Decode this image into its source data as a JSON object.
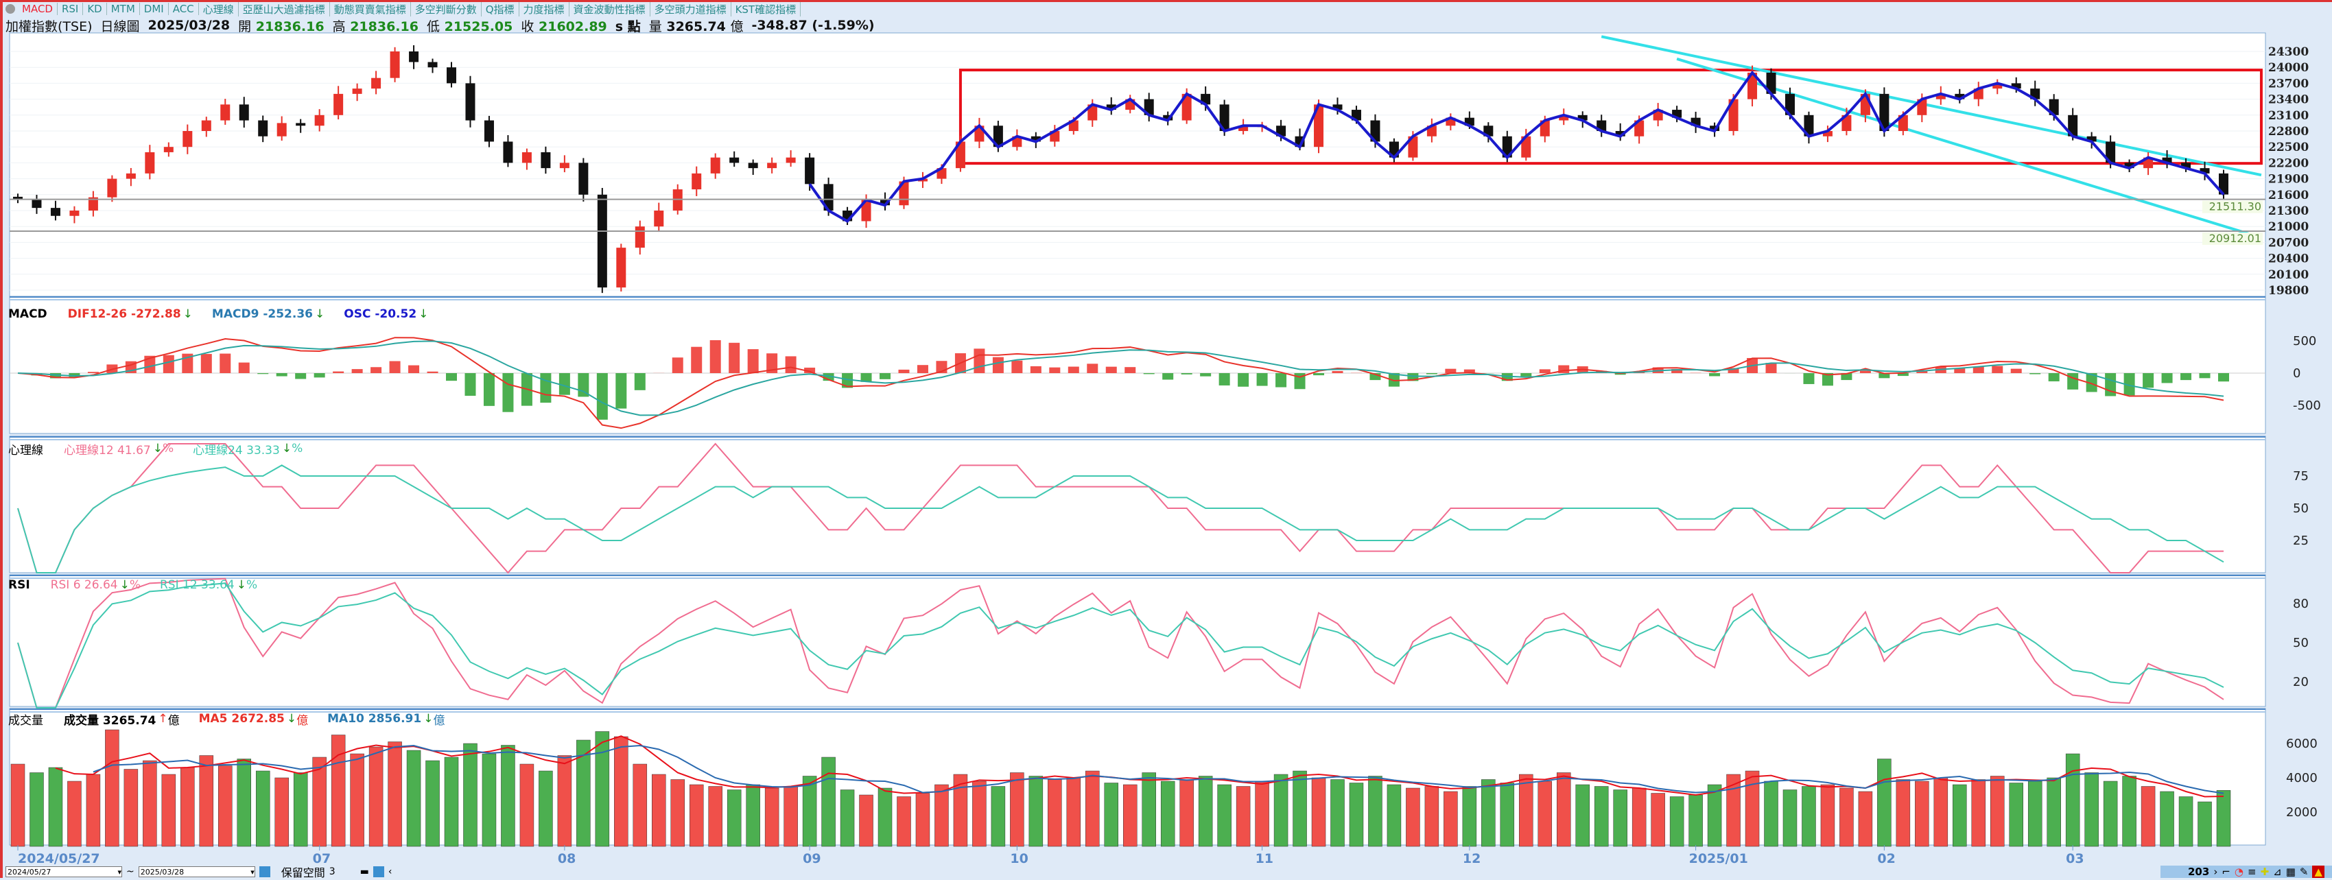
{
  "tabs": [
    "MACD",
    "RSI",
    "KD",
    "MTM",
    "DMI",
    "ACC",
    "心理線",
    "亞歷山大過濾指標",
    "動態買賣氣指標",
    "多空判斷分數",
    "Q指標",
    "力度指標",
    "資金波動性指標",
    "多空頭力道指標",
    "KST確認指標"
  ],
  "header": {
    "symbol": "加權指數(TSE)",
    "period": "日線圖",
    "date": "2025/03/28",
    "open_label": "開",
    "open": "21836.16",
    "high_label": "高",
    "high": "21836.16",
    "low_label": "低",
    "low": "21525.05",
    "close_label": "收",
    "close": "21602.89",
    "unit": "s 點",
    "vol_label": "量",
    "volume": "3265.74",
    "vol_unit": "億",
    "change": "-348.87 (-1.59%)"
  },
  "macd_legend": {
    "title": "MACD",
    "dif": "DIF12-26 -272.88",
    "macd": "MACD9 -252.36",
    "osc": "OSC -20.52",
    "arrow": "↓"
  },
  "psy_legend": {
    "title": "心理線",
    "p12": "心理線12 41.67",
    "p24": "心理線24 33.33",
    "arrow": "↓",
    "pct": "%"
  },
  "rsi_legend": {
    "title": "RSI",
    "r6": "RSI 6 26.64",
    "r12": "RSI 12 33.64",
    "arrow": "↓",
    "pct": "%"
  },
  "vol_legend": {
    "title": "成交量",
    "vol": "成交量 3265.74",
    "up": "↑",
    "ma5": "MA5 2672.85",
    "ma10": "MA10 2856.91",
    "arrow": "↓",
    "unit": "億"
  },
  "colors": {
    "up": "#e8322a",
    "down": "#111111",
    "vol_up": "#f0504a",
    "vol_down": "#4caf50",
    "dif": "#e8322a",
    "macd": "#2aa6a0",
    "zigzag": "#1a1acc",
    "box": "#e8101a",
    "channel": "#33e0e8"
  },
  "toolbar": {
    "from": "2024/05/27",
    "to": "2025/03/28",
    "tilde": "~",
    "keep_label": "保留空間",
    "keep_value": "3",
    "count": "203"
  },
  "chart_data": {
    "type": "candlestick",
    "closes": [
      21500,
      21350,
      21200,
      21300,
      21550,
      21900,
      22000,
      22400,
      22500,
      22800,
      23000,
      23300,
      23000,
      22700,
      22950,
      22900,
      23100,
      23500,
      23600,
      23800,
      24300,
      24100,
      24000,
      23700,
      23000,
      22600,
      22200,
      22400,
      22100,
      22200,
      21600,
      19850,
      20600,
      21000,
      21300,
      21700,
      22000,
      22300,
      22200,
      22100,
      22200,
      22300,
      21800,
      21300,
      21100,
      21500,
      21400,
      21850,
      21900,
      22100,
      22600,
      22900,
      22500,
      22700,
      22600,
      22800,
      23000,
      23300,
      23200,
      23400,
      23100,
      23000,
      23500,
      23300,
      22800,
      22900,
      22900,
      22700,
      22500,
      23300,
      23200,
      23000,
      22600,
      22300,
      22700,
      22900,
      23050,
      22900,
      22700,
      22300,
      22700,
      23000,
      23100,
      23000,
      22800,
      22700,
      23000,
      23200,
      23050,
      22900,
      22800,
      23400,
      23900,
      23500,
      23100,
      22700,
      22800,
      23100,
      23500,
      22800,
      23100,
      23400,
      23500,
      23400,
      23600,
      23700,
      23600,
      23400,
      23100,
      22700,
      22600,
      22200,
      22100,
      22300,
      22200,
      22100,
      22000,
      21603
    ],
    "volumes": [
      4800,
      4300,
      4600,
      3800,
      4200,
      6800,
      4500,
      5000,
      4200,
      4600,
      5300,
      4700,
      5100,
      4400,
      4000,
      4300,
      5200,
      6500,
      5400,
      5800,
      6100,
      5600,
      5000,
      5200,
      6000,
      5400,
      5900,
      4800,
      4400,
      5300,
      6200,
      6700,
      6400,
      4800,
      4200,
      3900,
      3600,
      3500,
      3300,
      3600,
      3400,
      3500,
      4100,
      5200,
      3300,
      3000,
      3400,
      2900,
      3100,
      3600,
      4200,
      3800,
      3500,
      4300,
      4100,
      3900,
      4000,
      4400,
      3700,
      3600,
      4300,
      3800,
      3900,
      4100,
      3600,
      3500,
      3800,
      4200,
      4400,
      4000,
      3900,
      3700,
      4100,
      3600,
      3400,
      3500,
      3200,
      3500,
      3900,
      3700,
      4200,
      3800,
      4300,
      3600,
      3500,
      3300,
      3400,
      3100,
      2900,
      3000,
      3600,
      4200,
      4400,
      3800,
      3300,
      3500,
      3600,
      3400,
      3200,
      5100,
      3900,
      3800,
      4000,
      3600,
      3900,
      4100,
      3700,
      3800,
      4000,
      5400,
      4300,
      3800,
      4100,
      3500,
      3200,
      2900,
      2600,
      3266
    ],
    "price_ticks": [
      24300,
      24000,
      23700,
      23400,
      23100,
      22800,
      22500,
      22200,
      21900,
      21600,
      21300,
      21000,
      20700,
      20400,
      20100,
      19800
    ],
    "price_range": [
      19700,
      24400
    ],
    "hlines": [
      {
        "value": 21511.3,
        "label": "21511.30"
      },
      {
        "value": 20912.01,
        "label": "20912.01"
      }
    ],
    "box": {
      "from_index": 50,
      "to_index": 119,
      "low": 22190,
      "high": 23950
    },
    "channel": [
      {
        "from": [
          84,
          24580
        ],
        "to": [
          119,
          21970
        ]
      },
      {
        "from": [
          88,
          24160
        ],
        "to": [
          119,
          20790
        ]
      }
    ],
    "zigzag_start_index": 42,
    "date_ticks": [
      {
        "i": 0,
        "label": "2024/05/27"
      },
      {
        "i": 16,
        "label": "07"
      },
      {
        "i": 29,
        "label": "08"
      },
      {
        "i": 42,
        "label": "09"
      },
      {
        "i": 53,
        "label": "10"
      },
      {
        "i": 66,
        "label": "11"
      },
      {
        "i": 77,
        "label": "12"
      },
      {
        "i": 89,
        "label": "2025/01"
      },
      {
        "i": 99,
        "label": "02"
      },
      {
        "i": 109,
        "label": "03"
      }
    ],
    "macd_ticks": [
      500,
      0,
      -500
    ],
    "psy_ticks": [
      75,
      50,
      25
    ],
    "rsi_ticks": [
      80,
      50,
      20
    ],
    "vol_ticks": [
      6000,
      4000,
      2000
    ]
  }
}
